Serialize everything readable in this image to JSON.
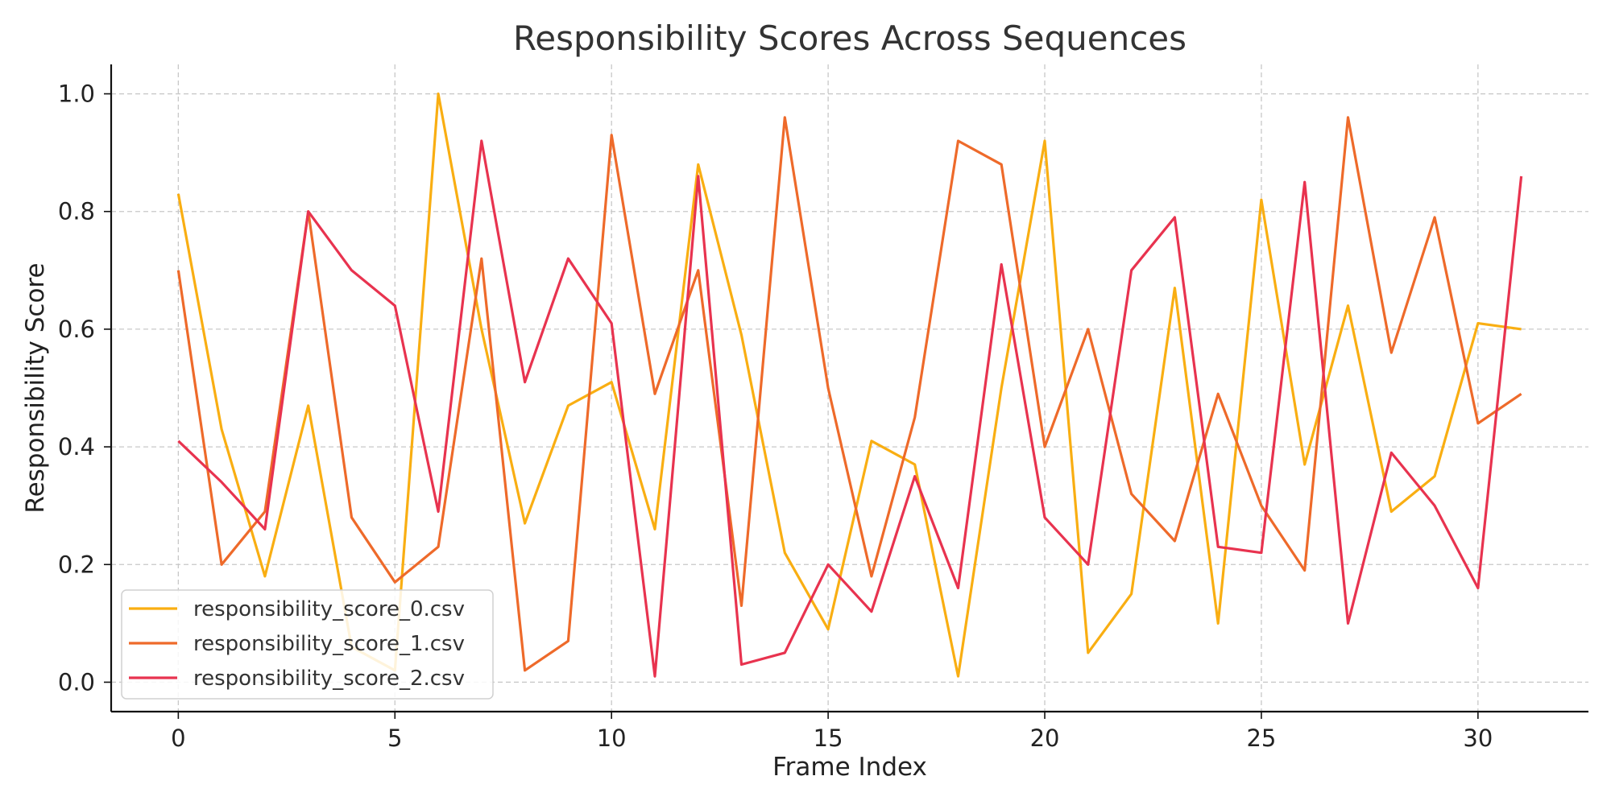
{
  "chart_data": {
    "type": "line",
    "title": "Responsibility Scores Across Sequences",
    "xlabel": "Frame Index",
    "ylabel": "Responsibility Score",
    "xlim": [
      -1.55,
      32.55
    ],
    "ylim": [
      -0.05,
      1.05
    ],
    "xticks": [
      0,
      5,
      10,
      15,
      20,
      25,
      30
    ],
    "yticks": [
      0.0,
      0.2,
      0.4,
      0.6,
      0.8,
      1.0
    ],
    "grid": true,
    "legend_position": "lower-left",
    "x": [
      0,
      1,
      2,
      3,
      4,
      5,
      6,
      7,
      8,
      9,
      10,
      11,
      12,
      13,
      14,
      15,
      16,
      17,
      18,
      19,
      20,
      21,
      22,
      23,
      24,
      25,
      26,
      27,
      28,
      29,
      30,
      31
    ],
    "series": [
      {
        "name": "responsibility_score_0.csv",
        "color": "#F9AE12",
        "values": [
          0.83,
          0.43,
          0.18,
          0.47,
          0.06,
          0.02,
          1.0,
          0.6,
          0.27,
          0.47,
          0.51,
          0.26,
          0.88,
          0.59,
          0.22,
          0.09,
          0.41,
          0.37,
          0.01,
          0.5,
          0.92,
          0.05,
          0.15,
          0.67,
          0.1,
          0.82,
          0.37,
          0.64,
          0.29,
          0.35,
          0.61,
          0.6
        ]
      },
      {
        "name": "responsibility_score_1.csv",
        "color": "#EE6A2A",
        "values": [
          0.7,
          0.2,
          0.29,
          0.8,
          0.28,
          0.17,
          0.23,
          0.72,
          0.02,
          0.07,
          0.93,
          0.49,
          0.7,
          0.13,
          0.96,
          0.5,
          0.18,
          0.45,
          0.92,
          0.88,
          0.4,
          0.6,
          0.32,
          0.24,
          0.49,
          0.3,
          0.19,
          0.96,
          0.56,
          0.79,
          0.44,
          0.49
        ]
      },
      {
        "name": "responsibility_score_2.csv",
        "color": "#E8334F",
        "values": [
          0.41,
          0.34,
          0.26,
          0.8,
          0.7,
          0.64,
          0.29,
          0.92,
          0.51,
          0.72,
          0.61,
          0.01,
          0.86,
          0.03,
          0.05,
          0.2,
          0.12,
          0.35,
          0.16,
          0.71,
          0.28,
          0.2,
          0.7,
          0.79,
          0.23,
          0.22,
          0.85,
          0.1,
          0.39,
          0.3,
          0.16,
          0.86
        ]
      }
    ]
  }
}
